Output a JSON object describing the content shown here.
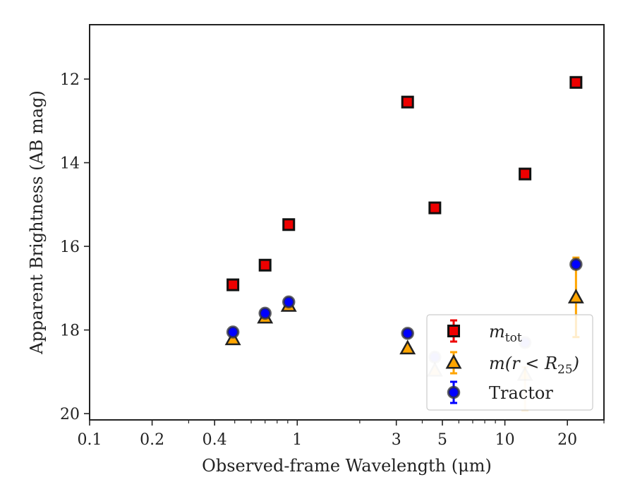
{
  "chart_data": {
    "type": "scatter",
    "xlabel": "Observed-frame Wavelength (μm)",
    "ylabel": "Apparent Brightness (AB mag)",
    "xscale": "log",
    "xlim": [
      0.1,
      30
    ],
    "ylim": [
      20.15,
      10.7
    ],
    "y_inverted": true,
    "x_ticks": [
      {
        "value": 0.1,
        "label": "0.1"
      },
      {
        "value": 0.2,
        "label": "0.2"
      },
      {
        "value": 0.4,
        "label": "0.4"
      },
      {
        "value": 1,
        "label": "1"
      },
      {
        "value": 3,
        "label": "3"
      },
      {
        "value": 5,
        "label": "5"
      },
      {
        "value": 10,
        "label": "10"
      },
      {
        "value": 20,
        "label": "20"
      }
    ],
    "x_minor_ticks": [
      0.3,
      0.5,
      0.6,
      0.7,
      0.8,
      0.9,
      2,
      4,
      6,
      7,
      8,
      9,
      30
    ],
    "y_ticks": [
      {
        "value": 12,
        "label": "12"
      },
      {
        "value": 14,
        "label": "14"
      },
      {
        "value": 16,
        "label": "16"
      },
      {
        "value": 18,
        "label": "18"
      },
      {
        "value": 20,
        "label": "20"
      }
    ],
    "grid": false,
    "legend_position": "lower-right",
    "series": [
      {
        "name": "m_tot",
        "marker": "square",
        "color": "#ee0000",
        "edge": "#111111",
        "points": [
          {
            "x": 0.49,
            "y": 16.92
          },
          {
            "x": 0.7,
            "y": 16.45
          },
          {
            "x": 0.91,
            "y": 15.48
          },
          {
            "x": 3.4,
            "y": 12.55
          },
          {
            "x": 4.6,
            "y": 15.08
          },
          {
            "x": 12.5,
            "y": 14.27
          },
          {
            "x": 22.0,
            "y": 12.08
          }
        ]
      },
      {
        "name": "m(r < R25)",
        "marker": "triangle",
        "color": "#ffa500",
        "edge": "#222222",
        "points": [
          {
            "x": 0.49,
            "y": 18.22,
            "alpha": 1
          },
          {
            "x": 0.7,
            "y": 17.7,
            "alpha": 1
          },
          {
            "x": 0.91,
            "y": 17.42,
            "alpha": 1
          },
          {
            "x": 3.4,
            "y": 18.44,
            "alpha": 1
          },
          {
            "x": 4.6,
            "y": 18.97,
            "alpha": 0.2
          },
          {
            "x": 12.5,
            "y": 19.07,
            "alpha": 0.2,
            "err": [
              0.18,
              0.85
            ]
          },
          {
            "x": 22.0,
            "y": 17.22,
            "alpha": 1,
            "err": [
              0.95,
              0.95
            ]
          }
        ]
      },
      {
        "name": "Tractor",
        "marker": "circle",
        "color": "#0000ff",
        "edge": "#333333",
        "points": [
          {
            "x": 0.49,
            "y": 18.05,
            "alpha": 1
          },
          {
            "x": 0.7,
            "y": 17.6,
            "alpha": 1
          },
          {
            "x": 0.91,
            "y": 17.33,
            "alpha": 1
          },
          {
            "x": 3.4,
            "y": 18.08,
            "alpha": 1
          },
          {
            "x": 4.6,
            "y": 18.65,
            "alpha": 0.2
          },
          {
            "x": 12.5,
            "y": 18.3,
            "alpha": 0.2
          },
          {
            "x": 22.0,
            "y": 16.43,
            "alpha": 1
          }
        ]
      }
    ],
    "legend": {
      "entries": [
        {
          "base": "m",
          "sub": "tot",
          "tail": ""
        },
        {
          "base": "m(r < R",
          "sub": "25",
          "tail": ")"
        },
        {
          "base": "Tractor",
          "sub": "",
          "tail": ""
        }
      ]
    }
  }
}
